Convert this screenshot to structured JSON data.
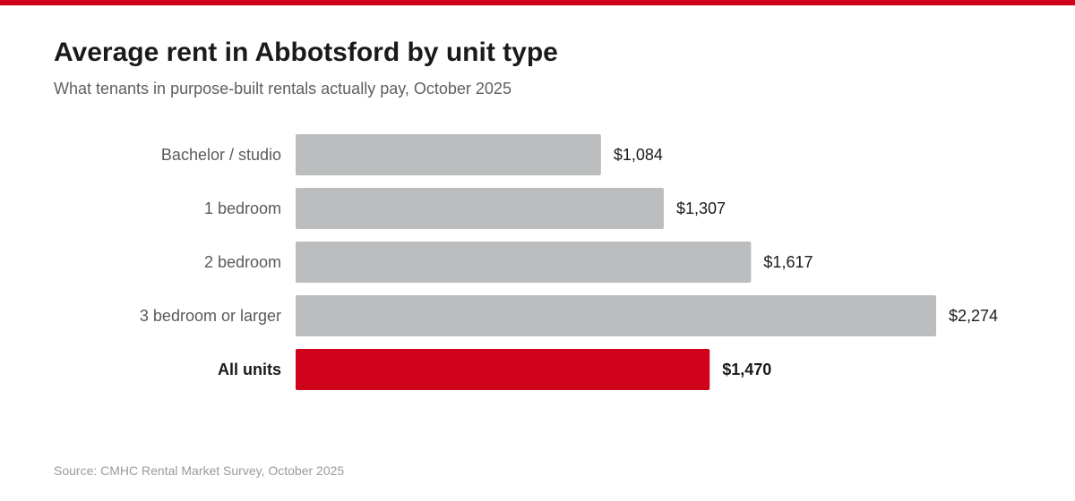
{
  "header": {
    "title": "Average rent in Abbotsford by unit type",
    "subtitle": "What tenants in purpose-built rentals actually pay, October 2025"
  },
  "footer": {
    "source": "Source: CMHC Rental Market Survey, October 2025"
  },
  "colors": {
    "accent": "#d0021b",
    "bar_default": "#bbbdbe",
    "label_text": "#5a5a5a",
    "value_text": "#1a1a1a"
  },
  "chart_data": {
    "type": "bar",
    "orientation": "horizontal",
    "title": "Average rent in Abbotsford by unit type",
    "subtitle": "What tenants in purpose-built rentals actually pay, October 2025",
    "categories": [
      "Bachelor / studio",
      "1 bedroom",
      "2 bedroom",
      "3 bedroom or larger",
      "All units"
    ],
    "values": [
      1084,
      1307,
      1617,
      2274,
      1470
    ],
    "value_labels": [
      "$1,084",
      "$1,307",
      "$1,617",
      "$2,274",
      "$1,470"
    ],
    "highlight": "All units",
    "xlim": [
      0,
      2274
    ],
    "grid": false,
    "legend": "none"
  }
}
